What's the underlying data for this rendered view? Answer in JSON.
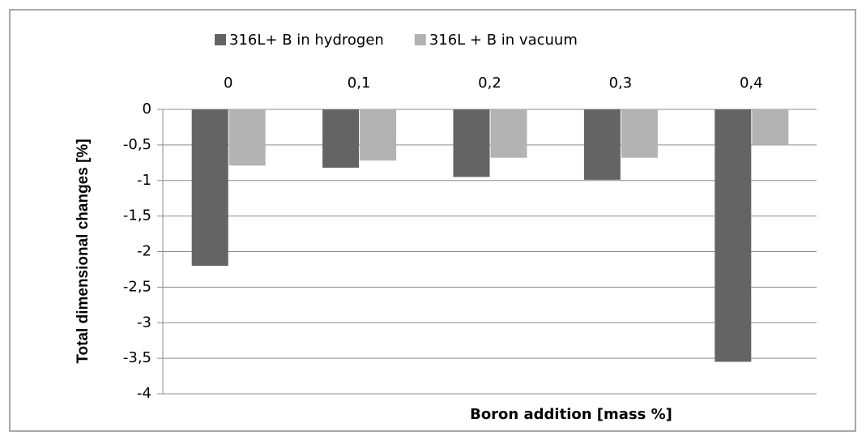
{
  "chart_data": {
    "type": "bar",
    "x_label": "Boron addition [mass %]",
    "y_label": "Total dimensional changes [%]",
    "categories": [
      "0",
      "0,1",
      "0,2",
      "0,3",
      "0,4"
    ],
    "series": [
      {
        "name": "316L+ B in hydrogen",
        "color": "#646464",
        "values": [
          -2.2,
          -0.82,
          -0.95,
          -0.99,
          -3.55
        ]
      },
      {
        "name": "316L + B in vacuum",
        "color": "#b3b3b3",
        "values": [
          -0.79,
          -0.72,
          -0.68,
          -0.68,
          -0.5
        ]
      }
    ],
    "ylim": [
      -4,
      0
    ],
    "yticks": [
      0,
      {
        "value": -0.5,
        "label": "-0,5"
      },
      -1,
      {
        "value": -1.5,
        "label": "-1,5"
      },
      -2,
      {
        "value": -2.5,
        "label": "-2,5"
      },
      -3,
      {
        "value": -3.5,
        "label": "-3,5"
      },
      -4
    ],
    "grid": true,
    "legend": "top"
  }
}
